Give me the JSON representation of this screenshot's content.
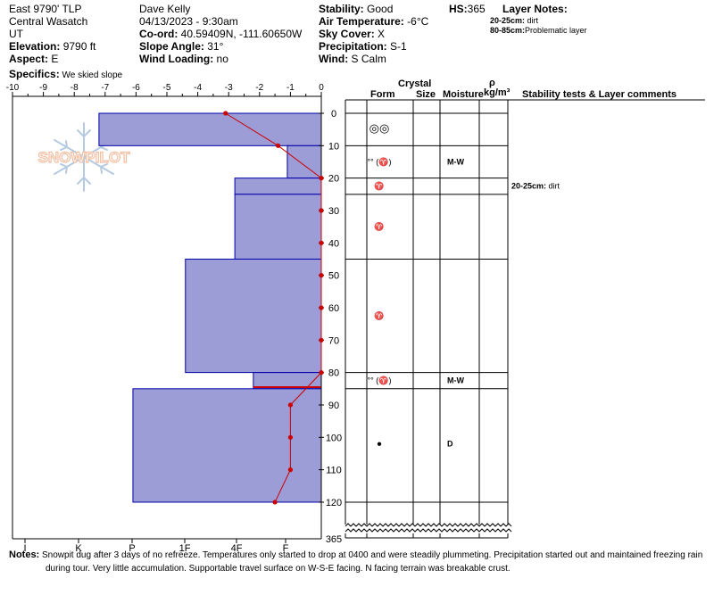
{
  "header": {
    "location": [
      {
        "text": "East 9790' TLP"
      },
      {
        "text": "Central Wasatch"
      },
      {
        "text": "UT"
      },
      {
        "label": "Elevation:",
        "value": " 9790 ft"
      },
      {
        "label": "Aspect:",
        "value": " E"
      },
      {
        "label": "Specifics:",
        "value": " We skied slope"
      }
    ],
    "observer": "Dave Kelly",
    "datetime": "04/13/2023 - 9:30am",
    "coord_label": "Co-ord:",
    "coord_value": " 40.59409N, -111.60650W",
    "slope_label": "Slope Angle:",
    "slope_value": " 31°",
    "wind_loading_label": "Wind Loading:",
    "wind_loading_value": " no",
    "stability_label": "Stability:",
    "stability_value": " Good",
    "air_temp_label": "Air Temperature:",
    "air_temp_value": " -6°C",
    "sky_label": "Sky Cover:",
    "sky_value": " X",
    "precip_label": "Precipitation:",
    "precip_value": " S-1",
    "wind_label": "Wind:",
    "wind_value": "  S Calm",
    "hs_label": "HS:",
    "hs_value": "365",
    "layer_notes_label": "Layer Notes:",
    "layer_notes": [
      {
        "range": "20-25cm:",
        "text": " dirt"
      },
      {
        "range": "80-85cm:",
        "text": "Problematic layer"
      }
    ]
  },
  "columns": {
    "crystal": "Crystal",
    "form": "Form",
    "size": "Size",
    "moisture": "Moisture",
    "rho": "ρ",
    "density_unit": "kg/m³",
    "comments": "Stability tests & Layer comments"
  },
  "layer_comment": {
    "range": "20-25cm:",
    "text": " dirt"
  },
  "watermark": "SNOWPILOT",
  "notes_label": "Notes:",
  "notes_line1": " Snowpit dug after 3 days of no refreeze. Temperatures only started to drop at 0400 and were steadily plummeting. Precipitation started out and maintained freezing rain",
  "notes_line2": "during tour. Very little accumulation. Supportable travel surface on W-S-E facing. N facing terrain was breakable crust.",
  "colors": {
    "hardness_fill": "#9c9cd6",
    "hardness_stroke": "#0000aa",
    "temp_line": "#cc0000",
    "crust_line": "#cc0000",
    "grid": "#000000"
  },
  "chart_data": {
    "type": "snow_profile",
    "depth_axis": {
      "ticks": [
        0,
        10,
        20,
        30,
        40,
        50,
        60,
        70,
        80,
        90,
        100,
        110,
        120
      ],
      "range": [
        0,
        120
      ],
      "break_label": "365",
      "direction": "down"
    },
    "temperature_axis": {
      "ticks": [
        -10,
        -9,
        -8,
        -7,
        -6,
        -5,
        -4,
        -3,
        -2,
        -1,
        0
      ],
      "range": [
        -10,
        0
      ],
      "unit": "°C"
    },
    "hardness_axis": {
      "labels": [
        "I",
        "K",
        "P",
        "1F",
        "4F",
        "F"
      ]
    },
    "hardness_layers": [
      {
        "top": 0,
        "bottom": 10,
        "extent_temp": -7.2
      },
      {
        "top": 10,
        "bottom": 20,
        "extent_temp": -1.1
      },
      {
        "top": 20,
        "bottom": 25,
        "extent_temp": -2.8
      },
      {
        "top": 25,
        "bottom": 45,
        "extent_temp": -2.8
      },
      {
        "top": 45,
        "bottom": 80,
        "extent_temp": -4.4
      },
      {
        "top": 80,
        "bottom": 85,
        "extent_temp": -2.2
      },
      {
        "top": 85,
        "bottom": 120,
        "extent_temp": -6.1
      }
    ],
    "crust_depth": 84.5,
    "temperature_profile": [
      {
        "depth": 0,
        "temp": -3.1
      },
      {
        "depth": 10,
        "temp": -1.4
      },
      {
        "depth": 20,
        "temp": 0
      },
      {
        "depth": 30,
        "temp": 0
      },
      {
        "depth": 40,
        "temp": 0
      },
      {
        "depth": 50,
        "temp": 0
      },
      {
        "depth": 60,
        "temp": 0
      },
      {
        "depth": 70,
        "temp": 0
      },
      {
        "depth": 80,
        "temp": 0
      },
      {
        "depth": 90,
        "temp": -1.0
      },
      {
        "depth": 100,
        "temp": -1.0
      },
      {
        "depth": 110,
        "temp": -1.0
      },
      {
        "depth": 120,
        "temp": -1.5
      }
    ],
    "layer_boundaries": [
      0,
      10,
      20,
      25,
      45,
      80,
      85,
      120
    ],
    "crystal_rows": [
      {
        "depth": 5,
        "form": "◎◎",
        "moisture": ""
      },
      {
        "depth": 15,
        "form": "°° (♈)",
        "moisture": "M-W"
      },
      {
        "depth": 22.5,
        "form": "♈",
        "moisture": ""
      },
      {
        "depth": 35,
        "form": "♈",
        "moisture": ""
      },
      {
        "depth": 62.5,
        "form": "♈",
        "moisture": ""
      },
      {
        "depth": 82.5,
        "form": "°° (♈)",
        "moisture": "M-W"
      },
      {
        "depth": 102,
        "form": "●",
        "moisture": "D"
      }
    ]
  }
}
